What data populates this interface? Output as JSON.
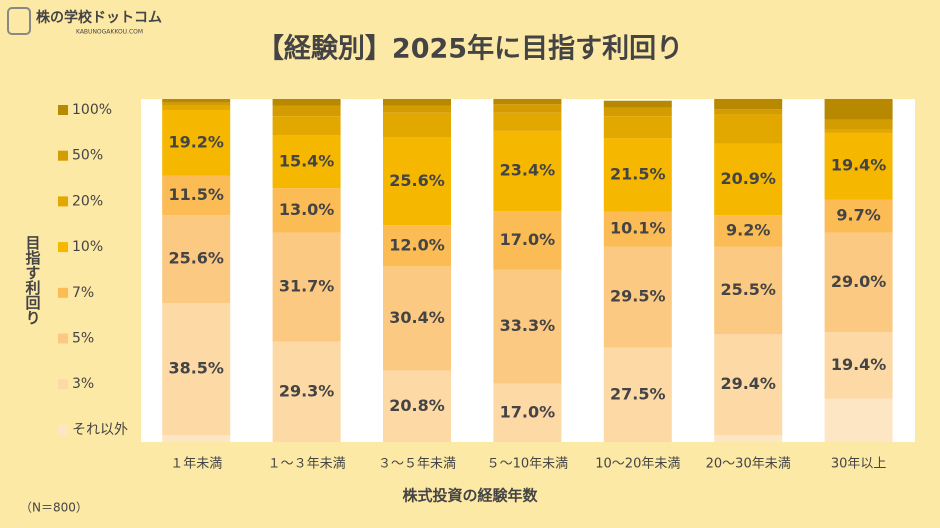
{
  "header": {
    "logo": "株の学校ドットコム",
    "logo_sub": "KABUNOGAKKOU.COM"
  },
  "chart_data": {
    "type": "stacked-bar",
    "title": "【経験別】2025年に目指す利回り",
    "y_label": "目指す利回り",
    "x_label": "株式投資の経験年数",
    "note": "（N＝800）",
    "ylim": [
      0,
      100
    ],
    "categories": [
      "１年未満",
      "１～３年未満",
      "３～５年未満",
      "５～10年未満",
      "10～20年未満",
      "20～30年未満",
      "30年以上"
    ],
    "series": [
      {
        "name": "それ以外",
        "color": "#fde6c4",
        "values": [
          2.0,
          0,
          0,
          0,
          0,
          2.0,
          12.6
        ],
        "value_labels": [
          null,
          null,
          null,
          null,
          null,
          null,
          null
        ]
      },
      {
        "name": "3%",
        "color": "#fdd9a6",
        "values": [
          38.5,
          29.3,
          20.8,
          17.0,
          27.5,
          29.4,
          19.4
        ],
        "value_labels": [
          "38.5%",
          "29.3%",
          "20.8%",
          "17.0%",
          "27.5%",
          "29.4%",
          "19.4%"
        ]
      },
      {
        "name": "5%",
        "color": "#fcc982",
        "values": [
          25.6,
          31.7,
          30.4,
          33.3,
          29.5,
          25.5,
          29.0
        ],
        "value_labels": [
          "25.6%",
          "31.7%",
          "30.4%",
          "33.3%",
          "29.5%",
          "25.5%",
          "29.0%"
        ]
      },
      {
        "name": "7%",
        "color": "#fbbb55",
        "values": [
          11.5,
          13.0,
          12.0,
          17.0,
          10.1,
          9.2,
          9.7
        ],
        "value_labels": [
          "11.5%",
          "13.0%",
          "12.0%",
          "17.0%",
          "10.1%",
          "9.2%",
          "9.7%"
        ]
      },
      {
        "name": "10%",
        "color": "#f5b700",
        "values": [
          19.2,
          15.4,
          25.6,
          23.4,
          21.5,
          20.9,
          19.4
        ],
        "value_labels": [
          "19.2%",
          "15.4%",
          "25.6%",
          "23.4%",
          "21.5%",
          "20.9%",
          "19.4%"
        ]
      },
      {
        "name": "20%",
        "color": "#e3a800",
        "values": [
          1.2,
          5.6,
          7.2,
          5.3,
          6.4,
          8.5,
          0.9
        ],
        "value_labels": [
          null,
          null,
          null,
          null,
          null,
          null,
          null
        ]
      },
      {
        "name": "50%",
        "color": "#d39c00",
        "values": [
          1.0,
          3.0,
          2.0,
          2.5,
          2.5,
          1.5,
          3.0
        ],
        "value_labels": [
          null,
          null,
          null,
          null,
          null,
          null,
          null
        ]
      },
      {
        "name": "100%",
        "color": "#b78800",
        "values": [
          1.0,
          2.0,
          2.0,
          1.5,
          2.0,
          3.0,
          6.0
        ],
        "value_labels": [
          null,
          null,
          null,
          null,
          null,
          null,
          null
        ]
      }
    ]
  }
}
